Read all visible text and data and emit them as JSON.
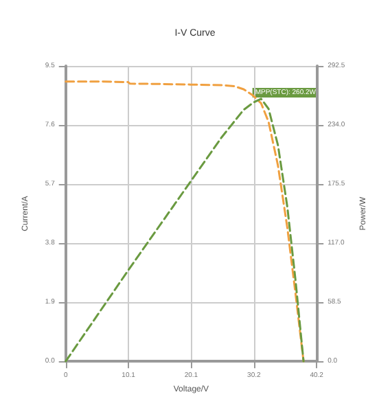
{
  "chart_data": {
    "type": "line",
    "title": "I-V Curve",
    "xlabel": "Voltage/V",
    "ylabel": "Current/A",
    "y2label": "Power/W",
    "xlim": [
      0,
      40.2
    ],
    "xticks": [
      0,
      {
        "value": 10.05,
        "label": "10.1"
      },
      {
        "value": 20.1,
        "label": "20.1"
      },
      {
        "value": 30.15,
        "label": "30.2"
      },
      {
        "value": 40.2,
        "label": "40.2"
      }
    ],
    "ylim": [
      0,
      9.5
    ],
    "yticks": [
      {
        "value": 0,
        "label": "0.0"
      },
      1.9,
      3.8,
      5.7,
      7.6,
      9.5
    ],
    "y2lim": [
      0,
      292.5
    ],
    "y2ticks": [
      {
        "value": 0,
        "label": "0.0"
      },
      58.5,
      {
        "value": 117,
        "label": "117.0"
      },
      175.5,
      {
        "value": 234,
        "label": "234.0"
      },
      292.5
    ],
    "grid": true,
    "line_style": "dashed",
    "marker": "none",
    "annotations": [
      "MPP(STC): 260.2W"
    ],
    "series": [
      {
        "color": "#f0a040",
        "x": [
          0,
          5,
          10,
          10.3,
          15,
          20,
          25,
          27,
          28.5,
          30,
          31.3,
          32.5,
          34,
          35.5,
          36.8,
          38.1
        ],
        "values": [
          9.0,
          9.0,
          8.98,
          8.93,
          8.92,
          8.9,
          8.88,
          8.85,
          8.75,
          8.55,
          8.3,
          7.7,
          6.3,
          4.3,
          2.2,
          0
        ]
      },
      {
        "color": "#6a9a40",
        "axis": "y2",
        "x": [
          0,
          10,
          20,
          25,
          28.5,
          30,
          31.3,
          32.5,
          34,
          35.5,
          36.8,
          38.1
        ],
        "values": [
          0,
          90,
          178,
          222,
          249,
          256,
          260,
          250,
          214,
          153,
          81,
          0
        ]
      }
    ]
  }
}
